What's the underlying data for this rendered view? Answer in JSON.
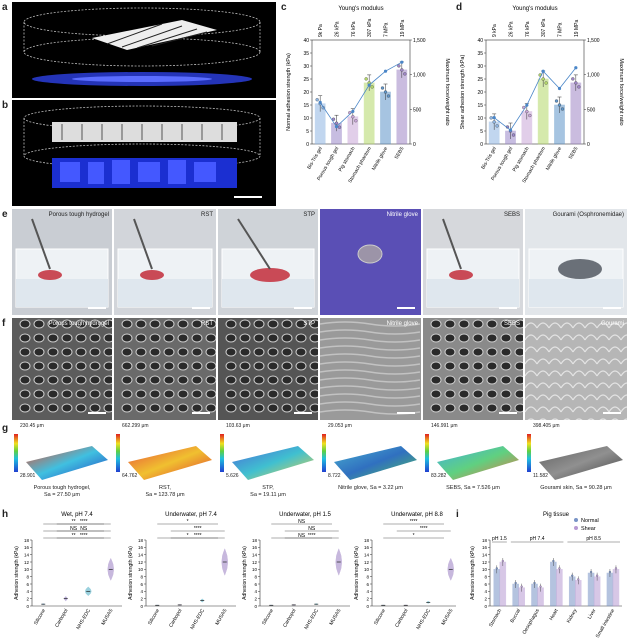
{
  "panel_labels": {
    "a": "a",
    "b": "b",
    "c": "c",
    "d": "d",
    "e": "e",
    "f": "f",
    "g": "g",
    "h": "h",
    "i": "i"
  },
  "colors": {
    "silicone": "#6aa6d6",
    "carbopol": "#8e7cc3",
    "nhs": "#5ab3c9",
    "musas": "#a38ac7",
    "bis": "#8fb6e3",
    "porous": "#9b88c9",
    "pig": "#c9a7d8",
    "stomach": "#b4d86a",
    "nitrile": "#5f95c9",
    "sebs": "#9f86c6",
    "line": "#4a86c8",
    "normal": "#7893c6",
    "shear": "#b89ad3"
  },
  "panel_e": {
    "photos": [
      "Porous tough hydrogel",
      "RST",
      "STP",
      "Nitrile glove",
      "SEBS",
      "Gourami (Osphronemidae)"
    ]
  },
  "panel_f": {
    "photos": [
      "Porous tough hydrogel",
      "RST",
      "STP",
      "Nitrile glove",
      "SEBS",
      "Gourami"
    ]
  },
  "panel_g": {
    "maps": [
      {
        "max": "230.45 μm",
        "min": "28.901",
        "cap1": "Porous tough hydrogel,",
        "cap2": "Sa = 27.50 μm"
      },
      {
        "max": "662.299 μm",
        "min": "64.762",
        "cap1": "RST,",
        "cap2": "Sa = 123.78 μm"
      },
      {
        "max": "103.63 μm",
        "min": "5.626",
        "cap1": "STP,",
        "cap2": "Sa = 19.11 μm"
      },
      {
        "max": "29.053 μm",
        "min": "8.722",
        "cap1": "Nitrile glove, Sa = 3.22 μm",
        "cap2": ""
      },
      {
        "max": "146.991 μm",
        "min": "83.282",
        "cap1": "SEBS, Sa = 7.526 μm",
        "cap2": ""
      },
      {
        "max": "398.405 μm",
        "min": "11.582",
        "cap1": "Gourami skin, Sa = 90.28 μm",
        "cap2": ""
      }
    ]
  },
  "chart_data": [
    {
      "id": "c",
      "type": "bar",
      "title": "Young's modulus",
      "categories": [
        "Bis-Tris gel",
        "Porous tough gel",
        "Pig stomach",
        "Stomach phantom",
        "Nitrile glove",
        "SEBS"
      ],
      "top_labels": [
        "9k Pa",
        "26 kPa",
        "76 kPa",
        "307 kPa",
        "7 MPa",
        "19 MPa"
      ],
      "values": [
        15.5,
        8,
        10.5,
        23.5,
        20,
        28.5
      ],
      "ratio": [
        600,
        250,
        470,
        850,
        1050,
        1180
      ],
      "ylabel": "Normal adhesion strength (kPa)",
      "ylim": [
        0,
        40
      ],
      "yticks": [
        0,
        5,
        10,
        15,
        20,
        25,
        30,
        35,
        40
      ],
      "y2label": "Maximum force/weight ratio",
      "y2lim": [
        0,
        1500
      ],
      "y2ticks": [
        0,
        500,
        1000,
        1500
      ],
      "y2ticklabels": [
        "0",
        "500",
        "1,000",
        "1,500"
      ]
    },
    {
      "id": "d",
      "type": "bar",
      "title": "Young's modulus",
      "categories": [
        "Bis-Tris gel",
        "Porous tough gel",
        "Pig stomach",
        "Stomach phantom",
        "Nitrile glove",
        "SEBS"
      ],
      "top_labels": [
        "9 kPa",
        "26 kPa",
        "76 kPa",
        "307 kPa",
        "7 MPa",
        "19 MPa"
      ],
      "values": [
        8.5,
        5,
        12.5,
        25,
        15,
        23.5
      ],
      "ratio": [
        380,
        200,
        560,
        1050,
        800,
        1100
      ],
      "ylabel": "Shear adhesion strength (kPa)",
      "ylim": [
        0,
        40
      ],
      "yticks": [
        0,
        5,
        10,
        15,
        20,
        25,
        30,
        35,
        40
      ],
      "y2label": "Maximum force/weight ratio",
      "y2lim": [
        0,
        1500
      ],
      "y2ticks": [
        0,
        500,
        1000,
        1500
      ],
      "y2ticklabels": [
        "0",
        "500",
        "1,000",
        "1,500"
      ]
    },
    {
      "id": "h1",
      "type": "bar",
      "title": "Wet, pH 7.4",
      "categories": [
        "Silicone",
        "Carbopol",
        "NHS-EDC",
        "MUSAS"
      ],
      "values": [
        0.5,
        2,
        4,
        10
      ],
      "ylabel": "Adhesion strength (kPa)",
      "ylim": [
        0,
        18
      ],
      "yticks": [
        0,
        2,
        4,
        6,
        8,
        10,
        12,
        14,
        16,
        18
      ],
      "annotations": [
        "**",
        "NS",
        "**",
        "****",
        "NS",
        "****"
      ]
    },
    {
      "id": "h2",
      "type": "bar",
      "title": "Underwater, pH 7.4",
      "categories": [
        "Silicone",
        "Carbopol",
        "NHS-EDC",
        "MUSAS"
      ],
      "values": [
        0.2,
        0.3,
        1.5,
        12
      ],
      "ylabel": "Adhesion strength (kPa)",
      "ylim": [
        0,
        18
      ],
      "yticks": [
        0,
        2,
        4,
        6,
        8,
        10,
        12,
        14,
        16,
        18
      ],
      "annotations": [
        "*",
        "****",
        "*",
        "****"
      ]
    },
    {
      "id": "h3",
      "type": "bar",
      "title": "Underwater, pH 1.5",
      "categories": [
        "Silicone",
        "Carbopol",
        "NHS-EDC",
        "MUSAS"
      ],
      "values": [
        0.2,
        0.3,
        0.5,
        12
      ],
      "ylabel": "Adhesion strength (kPa)",
      "ylim": [
        0,
        18
      ],
      "yticks": [
        0,
        2,
        4,
        6,
        8,
        10,
        12,
        14,
        16,
        18
      ],
      "annotations": [
        "NS",
        "NS",
        "NS",
        "****"
      ]
    },
    {
      "id": "h4",
      "type": "bar",
      "title": "Underwater, pH 8.8",
      "categories": [
        "Silicone",
        "Carbopol",
        "NHS-EDC",
        "MUSAS"
      ],
      "values": [
        0.2,
        0.2,
        1,
        10
      ],
      "ylabel": "Adhesion strength (kPa)",
      "ylim": [
        0,
        18
      ],
      "yticks": [
        0,
        2,
        4,
        6,
        8,
        10,
        12,
        14,
        16,
        18
      ],
      "annotations": [
        "*",
        "****",
        "****"
      ]
    },
    {
      "id": "i",
      "type": "bar",
      "title": "Pig tissue",
      "categories": [
        "Stomach",
        "Buccal",
        "Oesophagus",
        "Heart",
        "Kidney",
        "Liver",
        "Small intestine"
      ],
      "series": [
        {
          "name": "Normal",
          "values": [
            10,
            6,
            6,
            12,
            8,
            9,
            9
          ]
        },
        {
          "name": "Shear",
          "values": [
            12,
            5,
            5,
            10,
            7,
            8,
            10
          ]
        }
      ],
      "group_labels": [
        "pH 1.5",
        "pH 7.4",
        "pH 8.5"
      ],
      "ylabel": "Adhesion strength (kPa)",
      "ylim": [
        0,
        18
      ],
      "yticks": [
        0,
        2,
        4,
        6,
        8,
        10,
        12,
        14,
        16,
        18
      ]
    }
  ]
}
